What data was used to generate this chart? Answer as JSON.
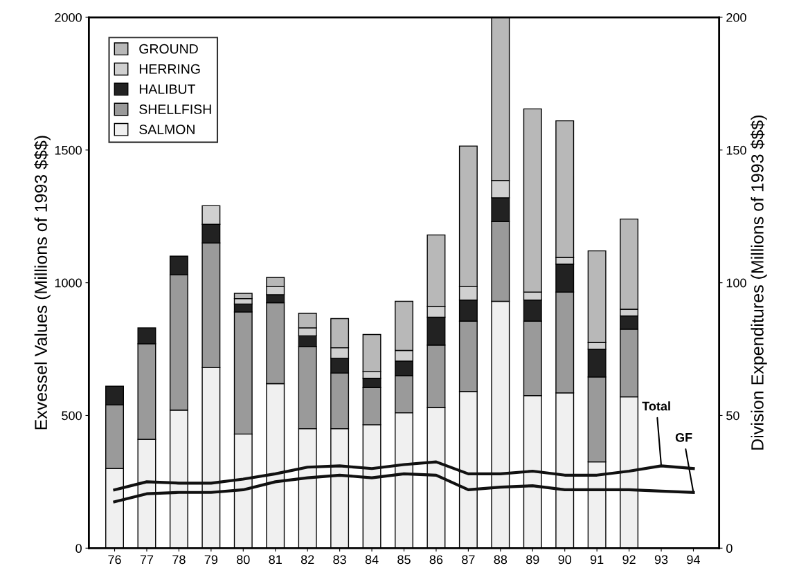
{
  "chart_data": {
    "type": "bar",
    "stacked": true,
    "categories": [
      "76",
      "77",
      "78",
      "79",
      "80",
      "81",
      "82",
      "83",
      "84",
      "85",
      "86",
      "87",
      "88",
      "89",
      "90",
      "91",
      "92",
      "93",
      "94"
    ],
    "ylabel": "Exvessel Values (Millions of 1993 $$$)",
    "y2label": "Division Expenditures (Millions of 1993 $$$)",
    "ylim": [
      0,
      2000
    ],
    "yticks": [
      0,
      500,
      1000,
      1500,
      2000
    ],
    "y2lim": [
      0,
      200
    ],
    "y2ticks": [
      0,
      50,
      100,
      150,
      200
    ],
    "grid": false,
    "legend": "top left",
    "series": [
      {
        "name": "SALMON",
        "color": "#f0f0f0",
        "values": [
          300,
          410,
          520,
          680,
          430,
          620,
          450,
          450,
          465,
          510,
          530,
          590,
          930,
          575,
          585,
          325,
          570,
          null,
          null
        ]
      },
      {
        "name": "SHELLFISH",
        "color": "#9a9a9a",
        "values": [
          240,
          360,
          510,
          470,
          460,
          305,
          310,
          210,
          140,
          140,
          235,
          265,
          300,
          280,
          380,
          320,
          255,
          null,
          null
        ]
      },
      {
        "name": "HALIBUT",
        "color": "#222222",
        "values": [
          70,
          60,
          70,
          70,
          30,
          30,
          40,
          55,
          35,
          55,
          105,
          80,
          90,
          80,
          105,
          105,
          50,
          null,
          null
        ]
      },
      {
        "name": "HERRING",
        "color": "#d0d0d0",
        "values": [
          null,
          null,
          null,
          70,
          20,
          30,
          30,
          40,
          25,
          40,
          40,
          50,
          65,
          30,
          25,
          25,
          25,
          null,
          null
        ]
      },
      {
        "name": "GROUND",
        "color": "#b8b8b8",
        "values": [
          null,
          null,
          null,
          null,
          20,
          35,
          55,
          110,
          140,
          185,
          270,
          530,
          615,
          690,
          515,
          345,
          340,
          null,
          null
        ]
      },
      {
        "type": "line",
        "axis": "y2",
        "color": "#111111",
        "values": [
          22,
          25,
          24.5,
          24.5,
          26,
          28,
          30.5,
          31,
          30,
          31.5,
          32.5,
          28,
          28,
          29,
          27.5,
          27.5,
          29,
          31,
          30
        ]
      },
      {
        "type": "line",
        "axis": "y2",
        "color": "#111111",
        "values": [
          17.5,
          20.5,
          21,
          21,
          22,
          25,
          26.5,
          27.5,
          26.5,
          28,
          27.5,
          22,
          23,
          23.5,
          22,
          22,
          22,
          21.5,
          21
        ]
      }
    ],
    "annotations": [
      {
        "text": "Total",
        "x": "93",
        "y": 310
      },
      {
        "text": "GF",
        "x": "94",
        "y": 210
      }
    ]
  }
}
